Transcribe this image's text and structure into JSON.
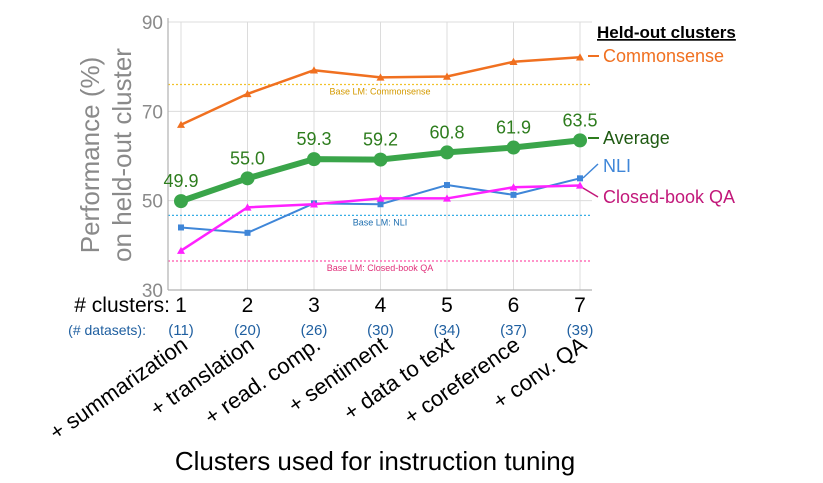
{
  "chart_data": {
    "type": "line",
    "title": "",
    "ylabel_line1": "Performance (%)",
    "ylabel_line2": "on held-out cluster",
    "xlabel": "Clusters used for instruction tuning",
    "ylim": [
      30,
      90
    ],
    "yticks": [
      30,
      50,
      70,
      90
    ],
    "grid": true,
    "clusters_label": "# clusters:",
    "datasets_label": "(# datasets):",
    "x": [
      "1",
      "2",
      "3",
      "4",
      "5",
      "6",
      "7"
    ],
    "datasets": [
      "(11)",
      "(20)",
      "(26)",
      "(30)",
      "(34)",
      "(37)",
      "(39)"
    ],
    "categories": [
      "+ summarization",
      "+ translation",
      "+ read. comp.",
      "+ sentiment",
      "+ data to text",
      "+ coreference",
      "+ conv. QA"
    ],
    "legend_title": "Held-out clusters",
    "legend_placement": "right",
    "series": [
      {
        "name": "Commonsense",
        "color": "#f07020",
        "values": [
          67.0,
          73.9,
          79.2,
          77.6,
          77.8,
          81.1,
          82.1
        ]
      },
      {
        "name": "Average",
        "color": "#3aa54a",
        "values": [
          49.9,
          55.0,
          59.3,
          59.2,
          60.8,
          61.9,
          63.5
        ],
        "labels": [
          "49.9",
          "55.0",
          "59.3",
          "59.2",
          "60.8",
          "61.9",
          "63.5"
        ]
      },
      {
        "name": "NLI",
        "color": "#3f86d8",
        "values": [
          44.0,
          42.8,
          49.4,
          49.2,
          53.5,
          51.3,
          55.0
        ]
      },
      {
        "name": "Closed-book QA",
        "color": "#ff22ff",
        "label_color": "#c2187a",
        "values": [
          38.8,
          48.5,
          49.2,
          50.5,
          50.5,
          53.0,
          53.4
        ]
      }
    ],
    "baselines": [
      {
        "label": "Base LM: Commonsense",
        "value": 76.0,
        "color": "#f2c22a"
      },
      {
        "label": "Base LM: NLI",
        "value": 46.7,
        "color": "#38aee6"
      },
      {
        "label": "Base LM: Closed-book QA",
        "value": 36.5,
        "color": "#ff55aa"
      }
    ]
  }
}
